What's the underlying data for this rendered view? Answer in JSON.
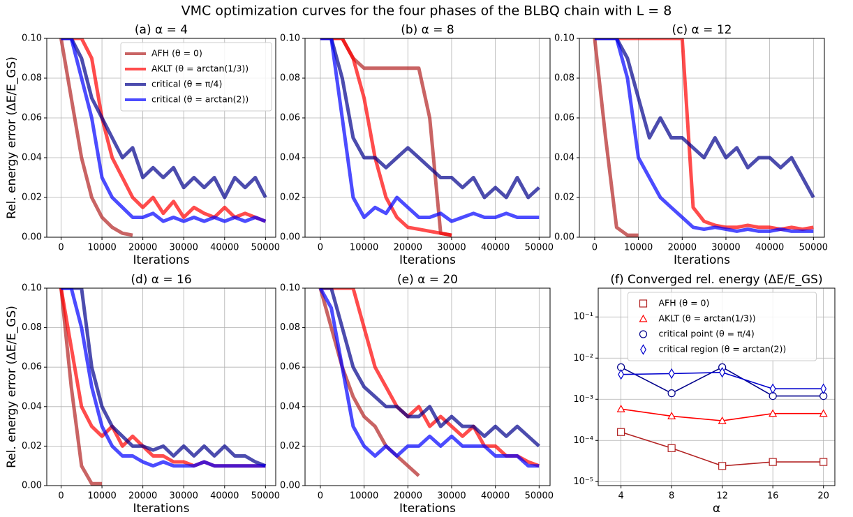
{
  "title": "VMC optimization curves for the four phases of the BLBQ chain with L = 8",
  "chart_data": [
    {
      "type": "line",
      "title": "(a) α = 4",
      "xlabel": "Iterations",
      "ylabel": "Rel. energy error (ΔE/E_GS)",
      "xlim": [
        -3500,
        52500
      ],
      "ylim": [
        0,
        0.1
      ],
      "grid": true,
      "legend": "upper right",
      "xticks": [
        0,
        10000,
        20000,
        30000,
        40000,
        50000
      ],
      "yticks": [
        {
          "value": 0,
          "label": "0.00"
        },
        {
          "value": 0.02,
          "label": "0.02"
        },
        {
          "value": 0.04,
          "label": "0.04"
        },
        {
          "value": 0.06,
          "label": "0.06"
        },
        {
          "value": 0.08,
          "label": "0.08"
        },
        {
          "value": 0.1,
          "label": "0.10"
        }
      ],
      "x": [
        0,
        2500,
        5000,
        7500,
        10000,
        12500,
        15000,
        17500,
        20000,
        22500,
        25000,
        27500,
        30000,
        32500,
        35000,
        37500,
        40000,
        42500,
        45000,
        47500,
        50000
      ],
      "series": [
        {
          "name": "AFH (θ = 0)",
          "color": "#b22222",
          "values": [
            0.1,
            0.07,
            0.04,
            0.02,
            0.01,
            0.005,
            0.002,
            0.001,
            null,
            null,
            null,
            null,
            null,
            null,
            null,
            null,
            null,
            null,
            null,
            null,
            null
          ]
        },
        {
          "name": "AKLT (θ = arctan(1/3))",
          "color": "#ff0000",
          "values": [
            0.1,
            0.1,
            0.1,
            0.09,
            0.06,
            0.04,
            0.03,
            0.02,
            0.015,
            0.02,
            0.012,
            0.018,
            0.01,
            0.015,
            0.012,
            0.01,
            0.015,
            0.01,
            0.012,
            0.01,
            0.008
          ]
        },
        {
          "name": "critical (θ = π/4)",
          "color": "#00008b",
          "values": [
            0.1,
            0.1,
            0.09,
            0.07,
            0.06,
            0.05,
            0.04,
            0.045,
            0.03,
            0.035,
            0.03,
            0.035,
            0.025,
            0.03,
            0.025,
            0.03,
            0.02,
            0.03,
            0.025,
            0.03,
            0.02
          ]
        },
        {
          "name": "critical (θ = arctan(2))",
          "color": "#0000ff",
          "values": [
            0.1,
            0.1,
            0.08,
            0.06,
            0.03,
            0.02,
            0.015,
            0.01,
            0.01,
            0.012,
            0.008,
            0.01,
            0.008,
            0.01,
            0.008,
            0.01,
            0.008,
            0.01,
            0.008,
            0.01,
            0.008
          ]
        }
      ]
    },
    {
      "type": "line",
      "title": "(b) α = 8",
      "xlabel": "Iterations",
      "xlim": [
        -3500,
        52500
      ],
      "ylim": [
        0,
        0.1
      ],
      "grid": true,
      "xticks": [
        0,
        10000,
        20000,
        30000,
        40000,
        50000
      ],
      "yticks": [
        {
          "value": 0,
          "label": "0.00"
        },
        {
          "value": 0.02,
          "label": "0.02"
        },
        {
          "value": 0.04,
          "label": "0.04"
        },
        {
          "value": 0.06,
          "label": "0.06"
        },
        {
          "value": 0.08,
          "label": "0.08"
        },
        {
          "value": 0.1,
          "label": "0.10"
        }
      ],
      "x": [
        0,
        2500,
        5000,
        7500,
        10000,
        12500,
        15000,
        17500,
        20000,
        22500,
        25000,
        27500,
        30000,
        32500,
        35000,
        37500,
        40000,
        42500,
        45000,
        47500,
        50000
      ],
      "series": [
        {
          "color": "#b22222",
          "values": [
            0.1,
            0.1,
            0.1,
            0.09,
            0.085,
            0.085,
            0.085,
            0.085,
            0.085,
            0.085,
            0.06,
            0.002,
            0.001,
            null,
            null,
            null,
            null,
            null,
            null,
            null,
            null
          ]
        },
        {
          "color": "#ff0000",
          "values": [
            0.1,
            0.1,
            0.1,
            0.09,
            0.07,
            0.04,
            0.02,
            0.01,
            0.005,
            0.004,
            0.003,
            0.002,
            0.001,
            null,
            null,
            null,
            null,
            null,
            null,
            null,
            null
          ]
        },
        {
          "color": "#00008b",
          "values": [
            0.1,
            0.1,
            0.08,
            0.05,
            0.04,
            0.04,
            0.035,
            0.04,
            0.045,
            0.04,
            0.035,
            0.03,
            0.03,
            0.025,
            0.03,
            0.02,
            0.025,
            0.02,
            0.03,
            0.02,
            0.025
          ]
        },
        {
          "color": "#0000ff",
          "values": [
            0.1,
            0.1,
            0.06,
            0.02,
            0.01,
            0.015,
            0.012,
            0.02,
            0.015,
            0.01,
            0.01,
            0.012,
            0.008,
            0.01,
            0.012,
            0.01,
            0.01,
            0.012,
            0.01,
            0.01,
            0.01
          ]
        }
      ]
    },
    {
      "type": "line",
      "title": "(c) α = 12",
      "xlabel": "Iterations",
      "xlim": [
        -3500,
        52500
      ],
      "ylim": [
        0,
        0.1
      ],
      "grid": true,
      "xticks": [
        0,
        10000,
        20000,
        30000,
        40000,
        50000
      ],
      "yticks": [
        {
          "value": 0,
          "label": "0.00"
        },
        {
          "value": 0.02,
          "label": "0.02"
        },
        {
          "value": 0.04,
          "label": "0.04"
        },
        {
          "value": 0.06,
          "label": "0.06"
        },
        {
          "value": 0.08,
          "label": "0.08"
        },
        {
          "value": 0.1,
          "label": "0.10"
        }
      ],
      "x": [
        0,
        2500,
        5000,
        7500,
        10000,
        12500,
        15000,
        17500,
        20000,
        22500,
        25000,
        27500,
        30000,
        32500,
        35000,
        37500,
        40000,
        42500,
        45000,
        47500,
        50000
      ],
      "series": [
        {
          "color": "#b22222",
          "values": [
            0.1,
            0.05,
            0.005,
            0.001,
            0.001,
            null,
            null,
            null,
            null,
            null,
            null,
            null,
            null,
            null,
            null,
            null,
            null,
            null,
            null,
            null,
            null
          ]
        },
        {
          "color": "#ff0000",
          "values": [
            0.1,
            0.1,
            0.1,
            0.1,
            0.1,
            0.1,
            0.1,
            0.1,
            0.1,
            0.015,
            0.008,
            0.006,
            0.005,
            0.005,
            0.006,
            0.005,
            0.005,
            0.004,
            0.005,
            0.004,
            0.005
          ]
        },
        {
          "color": "#00008b",
          "values": [
            0.1,
            0.1,
            0.1,
            0.09,
            0.07,
            0.05,
            0.06,
            0.05,
            0.05,
            0.045,
            0.04,
            0.05,
            0.04,
            0.045,
            0.035,
            0.04,
            0.04,
            0.035,
            0.04,
            0.03,
            0.02
          ]
        },
        {
          "color": "#0000ff",
          "values": [
            0.1,
            0.1,
            0.1,
            0.08,
            0.04,
            0.03,
            0.02,
            0.015,
            0.01,
            0.005,
            0.004,
            0.005,
            0.004,
            0.003,
            0.004,
            0.003,
            0.003,
            0.004,
            0.003,
            0.003,
            0.003
          ]
        }
      ]
    },
    {
      "type": "line",
      "title": "(d) α = 16",
      "xlabel": "Iterations",
      "ylabel": "Rel. energy error (ΔE/E_GS)",
      "xlim": [
        -3500,
        52500
      ],
      "ylim": [
        0,
        0.1
      ],
      "grid": true,
      "xticks": [
        0,
        10000,
        20000,
        30000,
        40000,
        50000
      ],
      "yticks": [
        {
          "value": 0,
          "label": "0.00"
        },
        {
          "value": 0.02,
          "label": "0.02"
        },
        {
          "value": 0.04,
          "label": "0.04"
        },
        {
          "value": 0.06,
          "label": "0.06"
        },
        {
          "value": 0.08,
          "label": "0.08"
        },
        {
          "value": 0.1,
          "label": "0.10"
        }
      ],
      "x": [
        0,
        2500,
        5000,
        7500,
        10000,
        12500,
        15000,
        17500,
        20000,
        22500,
        25000,
        27500,
        30000,
        32500,
        35000,
        37500,
        40000,
        42500,
        45000,
        47500,
        50000
      ],
      "series": [
        {
          "color": "#b22222",
          "values": [
            0.1,
            0.05,
            0.01,
            0.001,
            0.001,
            null,
            null,
            null,
            null,
            null,
            null,
            null,
            null,
            null,
            null,
            null,
            null,
            null,
            null,
            null,
            null
          ]
        },
        {
          "color": "#ff0000",
          "values": [
            0.1,
            0.07,
            0.04,
            0.03,
            0.025,
            0.03,
            0.02,
            0.025,
            0.02,
            0.015,
            0.015,
            0.012,
            0.012,
            0.01,
            0.012,
            0.01,
            0.01,
            0.01,
            0.01,
            0.01,
            0.01
          ]
        },
        {
          "color": "#00008b",
          "values": [
            0.1,
            0.1,
            0.1,
            0.06,
            0.04,
            0.03,
            0.025,
            0.02,
            0.02,
            0.018,
            0.02,
            0.015,
            0.02,
            0.015,
            0.02,
            0.015,
            0.02,
            0.015,
            0.015,
            0.012,
            0.01
          ]
        },
        {
          "color": "#0000ff",
          "values": [
            0.1,
            0.1,
            0.08,
            0.05,
            0.03,
            0.02,
            0.015,
            0.015,
            0.012,
            0.01,
            0.012,
            0.01,
            0.01,
            0.01,
            0.012,
            0.01,
            0.01,
            0.01,
            0.01,
            0.01,
            0.01
          ]
        }
      ]
    },
    {
      "type": "line",
      "title": "(e) α = 20",
      "xlabel": "Iterations",
      "xlim": [
        -3500,
        52500
      ],
      "ylim": [
        0,
        0.1
      ],
      "grid": true,
      "xticks": [
        0,
        10000,
        20000,
        30000,
        40000,
        50000
      ],
      "yticks": [
        {
          "value": 0,
          "label": "0.00"
        },
        {
          "value": 0.02,
          "label": "0.02"
        },
        {
          "value": 0.04,
          "label": "0.04"
        },
        {
          "value": 0.06,
          "label": "0.06"
        },
        {
          "value": 0.08,
          "label": "0.08"
        },
        {
          "value": 0.1,
          "label": "0.10"
        }
      ],
      "x": [
        0,
        2500,
        5000,
        7500,
        10000,
        12500,
        15000,
        17500,
        20000,
        22500,
        25000,
        27500,
        30000,
        32500,
        35000,
        37500,
        40000,
        42500,
        45000,
        47500,
        50000
      ],
      "series": [
        {
          "color": "#b22222",
          "values": [
            0.1,
            0.08,
            0.06,
            0.045,
            0.035,
            0.03,
            0.02,
            0.015,
            0.01,
            0.005,
            null,
            null,
            null,
            null,
            null,
            null,
            null,
            null,
            null,
            null,
            null
          ]
        },
        {
          "color": "#ff0000",
          "values": [
            0.1,
            0.1,
            0.1,
            0.1,
            0.08,
            0.06,
            0.05,
            0.04,
            0.035,
            0.04,
            0.03,
            0.035,
            0.03,
            0.025,
            0.03,
            0.02,
            0.02,
            0.015,
            0.015,
            0.012,
            0.01
          ]
        },
        {
          "color": "#00008b",
          "values": [
            0.1,
            0.1,
            0.08,
            0.06,
            0.05,
            0.045,
            0.04,
            0.04,
            0.035,
            0.035,
            0.04,
            0.03,
            0.035,
            0.03,
            0.03,
            0.025,
            0.03,
            0.025,
            0.03,
            0.025,
            0.02
          ]
        },
        {
          "color": "#0000ff",
          "values": [
            0.1,
            0.09,
            0.06,
            0.03,
            0.02,
            0.015,
            0.02,
            0.015,
            0.02,
            0.02,
            0.025,
            0.02,
            0.025,
            0.02,
            0.02,
            0.02,
            0.015,
            0.015,
            0.015,
            0.01,
            0.01
          ]
        }
      ]
    },
    {
      "type": "line",
      "title": "(f) Converged rel. energy (ΔE/E_GS)",
      "xlabel": "α",
      "xlim": [
        2.2,
        20.9
      ],
      "ylim": [
        8e-06,
        0.5
      ],
      "log_y": true,
      "grid": true,
      "legend": "upper center",
      "markers": true,
      "xticks": [
        4,
        8,
        12,
        16,
        20
      ],
      "yticks": [
        {
          "value": 1e-05,
          "label": "10⁻⁵"
        },
        {
          "value": 0.0001,
          "label": "10⁻⁴"
        },
        {
          "value": 0.001,
          "label": "10⁻³"
        },
        {
          "value": 0.01,
          "label": "10⁻²"
        },
        {
          "value": 0.1,
          "label": "10⁻¹"
        }
      ],
      "x": [
        4,
        8,
        12,
        16,
        20
      ],
      "series": [
        {
          "name": "AFH (θ = 0)",
          "color": "#b22222",
          "marker": "square",
          "values": [
            0.00016,
            6.5e-05,
            2.4e-05,
            3e-05,
            3e-05
          ]
        },
        {
          "name": "AKLT (θ = arctan(1/3))",
          "color": "#ff0000",
          "marker": "triangle",
          "values": [
            0.00058,
            0.00039,
            0.0003,
            0.00045,
            0.00045
          ]
        },
        {
          "name": "critical point (θ = π/4)",
          "color": "#00008b",
          "marker": "circle",
          "values": [
            0.006,
            0.0014,
            0.006,
            0.0012,
            0.0012
          ]
        },
        {
          "name": "critical region (θ = arctan(2))",
          "color": "#0000cd",
          "marker": "diamond",
          "values": [
            0.004,
            0.0042,
            0.0045,
            0.0018,
            0.0018
          ]
        }
      ]
    }
  ]
}
